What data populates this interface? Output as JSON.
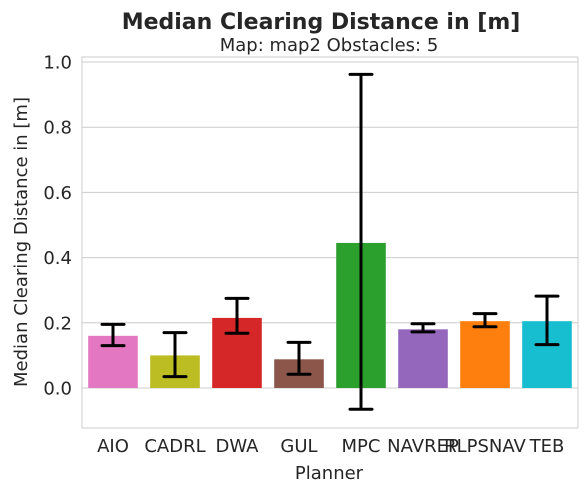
{
  "chart_data": {
    "type": "bar",
    "title": "Median Clearing Distance in [m]",
    "subtitle": "Map: map2 Obstacles: 5",
    "xlabel": "Planner",
    "ylabel": "Median Clearing Distance in [m]",
    "categories": [
      "AIO",
      "CADRL",
      "DWA",
      "GUL",
      "MPC",
      "NAVREP",
      "RLPSNAV",
      "TEB"
    ],
    "values": [
      0.16,
      0.1,
      0.215,
      0.088,
      0.445,
      0.18,
      0.205,
      0.205
    ],
    "error_low": [
      0.13,
      0.035,
      0.168,
      0.042,
      -0.065,
      0.172,
      0.188,
      0.133
    ],
    "error_high": [
      0.195,
      0.17,
      0.275,
      0.14,
      0.962,
      0.197,
      0.228,
      0.282
    ],
    "colors": [
      "#e377c2",
      "#bcbd22",
      "#d62728",
      "#8c564b",
      "#2ca02c",
      "#9467bd",
      "#ff7f0e",
      "#17becf"
    ],
    "yticks": [
      "0.0",
      "0.2",
      "0.4",
      "0.6",
      "0.8",
      "1.0"
    ],
    "ylim": [
      -0.12,
      1.01
    ],
    "grid": true,
    "legend": "none"
  }
}
